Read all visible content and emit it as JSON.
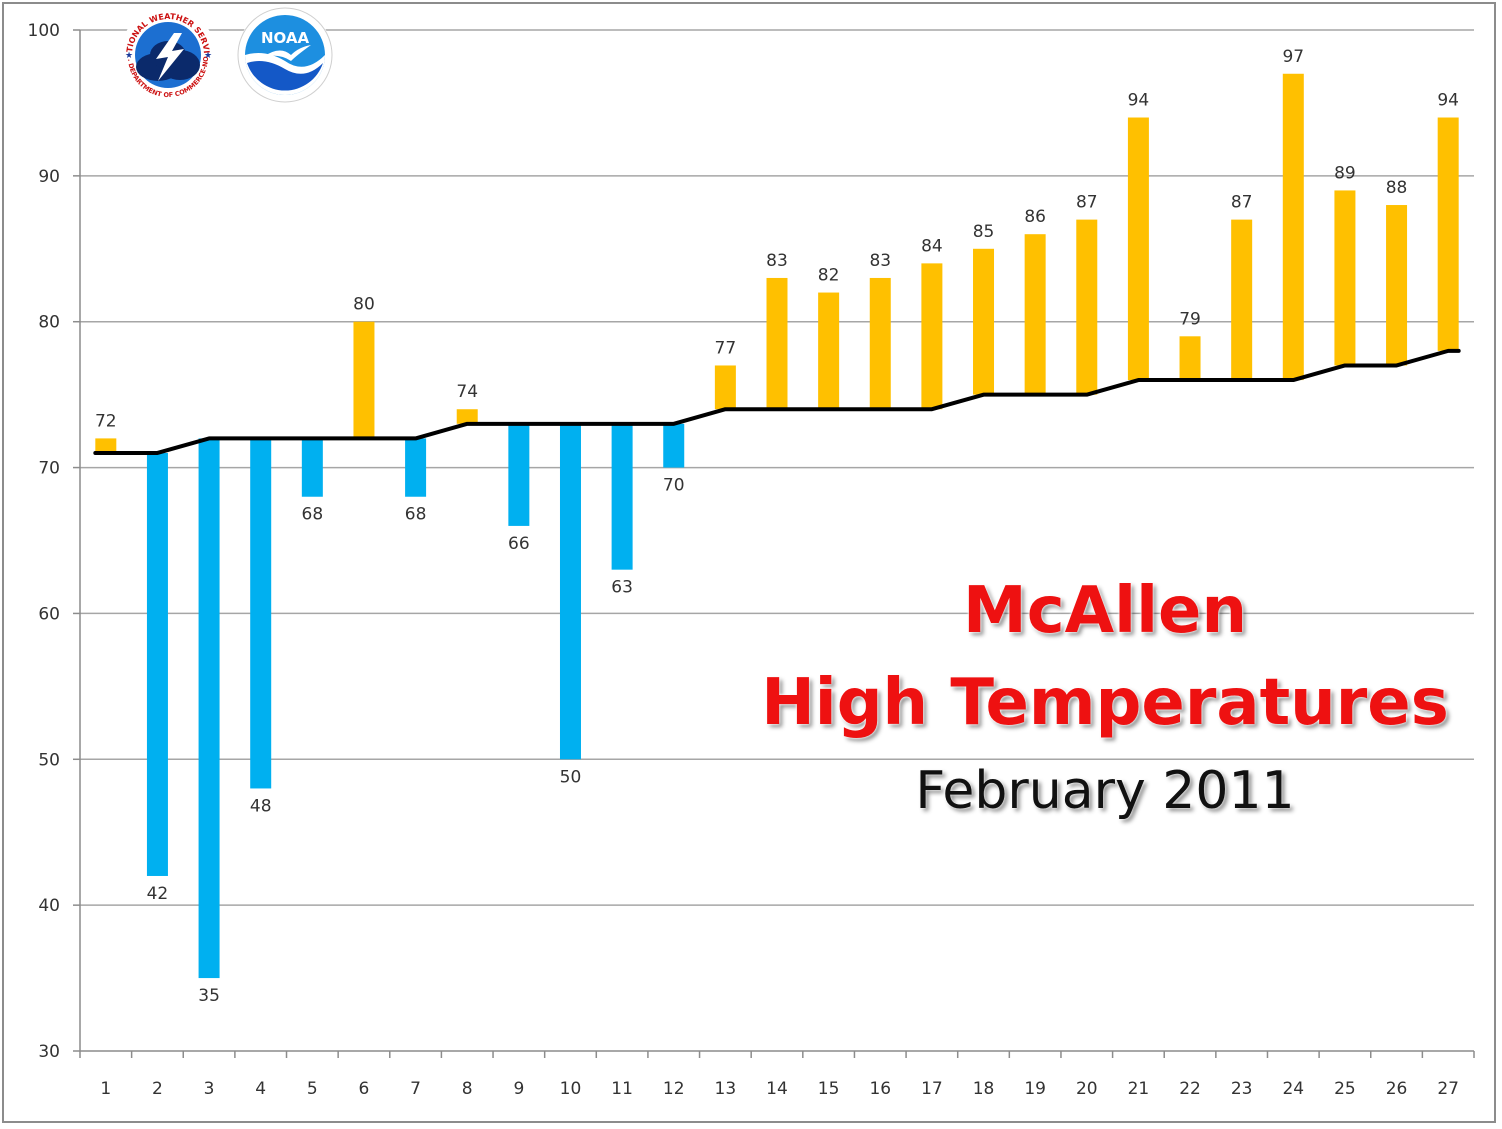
{
  "title": {
    "line1": "McAllen",
    "line2": "High Temperatures",
    "line3": "February 2011"
  },
  "logos": {
    "nws": {
      "ring_text": "NATIONAL WEATHER SERVICE",
      "bottom_text": "U.S. DEPARTMENT OF COMMERCE-NOAA"
    },
    "noaa": {
      "center_text": "NOAA"
    }
  },
  "colors": {
    "above_normal": "#FFC000",
    "below_normal": "#00B0F0",
    "normal_line": "#000000",
    "grid": "#a6a6a6",
    "title_red": "#ee1111"
  },
  "chart_data": {
    "type": "bar",
    "ylim": [
      30,
      100
    ],
    "yticks": [
      30,
      40,
      50,
      60,
      70,
      80,
      90,
      100
    ],
    "categories": [
      "1",
      "2",
      "3",
      "4",
      "5",
      "6",
      "7",
      "8",
      "9",
      "10",
      "11",
      "12",
      "13",
      "14",
      "15",
      "16",
      "17",
      "18",
      "19",
      "20",
      "21",
      "22",
      "23",
      "24",
      "25",
      "26",
      "27"
    ],
    "series": [
      {
        "values": [
          72,
          42,
          35,
          48,
          68,
          80,
          68,
          74,
          66,
          50,
          63,
          70,
          77,
          83,
          82,
          83,
          84,
          85,
          86,
          87,
          94,
          79,
          87,
          97,
          89,
          88,
          94
        ]
      },
      {
        "values": [
          71,
          71,
          72,
          72,
          72,
          72,
          72,
          73,
          73,
          73,
          73,
          73,
          74,
          74,
          74,
          74,
          74,
          75,
          75,
          75,
          76,
          76,
          76,
          76,
          77,
          77,
          78
        ]
      }
    ]
  }
}
